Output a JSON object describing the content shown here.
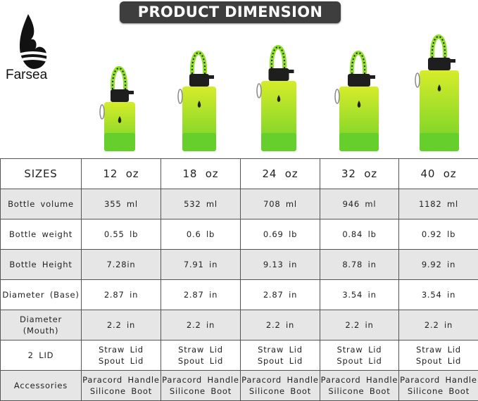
{
  "title": "PRODUCT DIMENSION",
  "brand": "Farsea",
  "colors": {
    "bottle_top": "#d6ec2a",
    "bottle_bottom": "#6fd12a",
    "boot": "#67cf2b",
    "lid": "#1e1e1e",
    "handle": "#8fe02a",
    "title_bg": "#3e3e3e"
  },
  "table": {
    "header": [
      "SIZES",
      "12 oz",
      "18 oz",
      "24 oz",
      "32 oz",
      "40 oz"
    ],
    "rows": [
      {
        "label": "Bottle volume",
        "values": [
          "355 ml",
          "532 ml",
          "708 ml",
          "946 ml",
          "1182 ml"
        ]
      },
      {
        "label": "Bottle weight",
        "values": [
          "0.55 lb",
          "0.6 lb",
          "0.69 lb",
          "0.84 lb",
          "0.92 lb"
        ]
      },
      {
        "label": "Bottle Height",
        "values": [
          "7.28in",
          "7.91 in",
          "9.13 in",
          "8.78 in",
          "9.92 in"
        ]
      },
      {
        "label": "Diameter (Base)",
        "values": [
          "2.87 in",
          "2.87 in",
          "2.87 in",
          "3.54 in",
          "3.54 in"
        ]
      },
      {
        "label": "Diameter (Mouth)",
        "values": [
          "2.2 in",
          "2.2 in",
          "2.2 in",
          "2.2 in",
          "2.2 in"
        ]
      },
      {
        "label": "2 LID",
        "values": [
          "Straw Lid\nSpout Lid",
          "Straw Lid\nSpout Lid",
          "Straw Lid\nSpout Lid",
          "Straw Lid\nSpout Lid",
          "Straw Lid\nSpout Lid"
        ]
      },
      {
        "label": "Accessories",
        "values": [
          "Paracord Handle\nSilicone Boot",
          "Paracord Handle\nSilicone Boot",
          "Paracord Handle\nSilicone Boot",
          "Paracord Handle\nSilicone Boot",
          "Paracord Handle\nSilicone Boot"
        ]
      }
    ]
  }
}
